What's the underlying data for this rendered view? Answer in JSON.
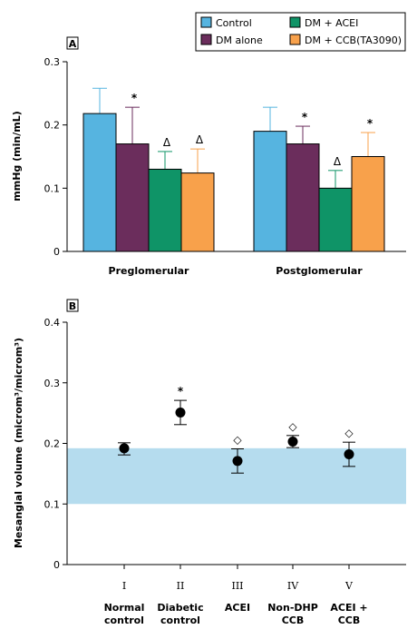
{
  "chart_data": [
    {
      "panel": "A",
      "type": "bar",
      "ylabel": "mmHg (min/mL)",
      "ylim": [
        0,
        0.3
      ],
      "yticks": [
        "0",
        "0.1",
        "0.2",
        "0.3"
      ],
      "categories": [
        "Preglomerular",
        "Postglomerular"
      ],
      "series": [
        {
          "name": "Control",
          "color": "#56b4e0",
          "values": [
            0.218,
            0.19
          ],
          "errors": [
            0.258,
            0.228
          ],
          "marks": [
            "",
            ""
          ]
        },
        {
          "name": "DM alone",
          "color": "#6b2d5c",
          "values": [
            0.17,
            0.17
          ],
          "errors": [
            0.228,
            0.198
          ],
          "marks": [
            "*",
            "*"
          ]
        },
        {
          "name": "DM + ACEI",
          "color": "#0f9467",
          "values": [
            0.13,
            0.1
          ],
          "errors": [
            0.158,
            0.128
          ],
          "marks": [
            "Δ",
            "Δ"
          ]
        },
        {
          "name": "DM + CCB(TA3090)",
          "color": "#f8a14b",
          "values": [
            0.124,
            0.15
          ],
          "errors": [
            0.162,
            0.188
          ],
          "marks": [
            "Δ",
            "*"
          ]
        }
      ],
      "legend_position": "top-right"
    },
    {
      "panel": "B",
      "type": "scatter",
      "ylabel": "Mesangial volume (microm³/microm³)",
      "ylim": [
        0,
        0.4
      ],
      "yticks": [
        "0",
        "0.1",
        "0.2",
        "0.3",
        "0.4"
      ],
      "normal_band": [
        0.1,
        0.192
      ],
      "band_color": "#b5dcee",
      "roman": [
        "I",
        "II",
        "III",
        "IV",
        "V"
      ],
      "categories": [
        [
          "Normal",
          "control"
        ],
        [
          "Diabetic",
          "control"
        ],
        [
          "ACEI",
          ""
        ],
        [
          "Non-DHP",
          "CCB"
        ],
        [
          "ACEI +",
          "CCB"
        ]
      ],
      "values": [
        0.192,
        0.251,
        0.171,
        0.203,
        0.182
      ],
      "err_low": [
        0.181,
        0.231,
        0.151,
        0.193,
        0.162
      ],
      "err_high": [
        0.201,
        0.271,
        0.191,
        0.213,
        0.202
      ],
      "marks": [
        "",
        "*",
        "◇",
        "◇",
        "◇"
      ]
    }
  ]
}
